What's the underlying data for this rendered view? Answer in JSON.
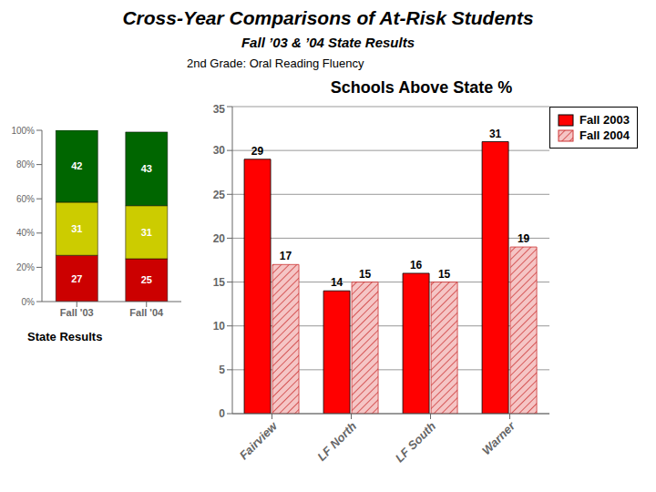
{
  "title": "Cross-Year Comparisons of At-Risk Students",
  "subtitle": "Fall ’03 & ’04 State Results",
  "annotations": [
    "2nd Grade: Oral Reading Fluency"
  ],
  "chart_data": [
    {
      "type": "bar",
      "title": "State Results",
      "categories": [
        "Fall '03",
        "Fall '04"
      ],
      "series": [
        {
          "color": "#cc0000",
          "values": [
            27,
            25
          ]
        },
        {
          "color": "#cccc00",
          "values": [
            31,
            31
          ]
        },
        {
          "color": "#006600",
          "values": [
            42,
            43
          ]
        }
      ],
      "stacked": true,
      "data_labels": true,
      "grid": false,
      "ylim": [
        0,
        100
      ],
      "yticks": [
        {
          "value": 0,
          "label": "0%"
        },
        {
          "value": 20,
          "label": "20%"
        },
        {
          "value": 40,
          "label": "40%"
        },
        {
          "value": 60,
          "label": "60%"
        },
        {
          "value": 80,
          "label": "80%"
        },
        {
          "value": 100,
          "label": "100%"
        }
      ]
    },
    {
      "type": "bar",
      "title": "Schools Above State %",
      "categories": [
        "Fairview",
        "LF North",
        "LF South",
        "Warner"
      ],
      "series": [
        {
          "name": "Fall 2003",
          "color": "#ff0000",
          "values": [
            29,
            14,
            16,
            31
          ]
        },
        {
          "name": "Fall 2004",
          "color": "#f5c5c5",
          "values": [
            17,
            15,
            15,
            19
          ]
        }
      ],
      "data_labels": true,
      "grid": true,
      "legend": "upper right",
      "ylim": [
        0,
        35
      ],
      "yticks": [
        0,
        5,
        10,
        15,
        20,
        25,
        30,
        35
      ]
    }
  ]
}
